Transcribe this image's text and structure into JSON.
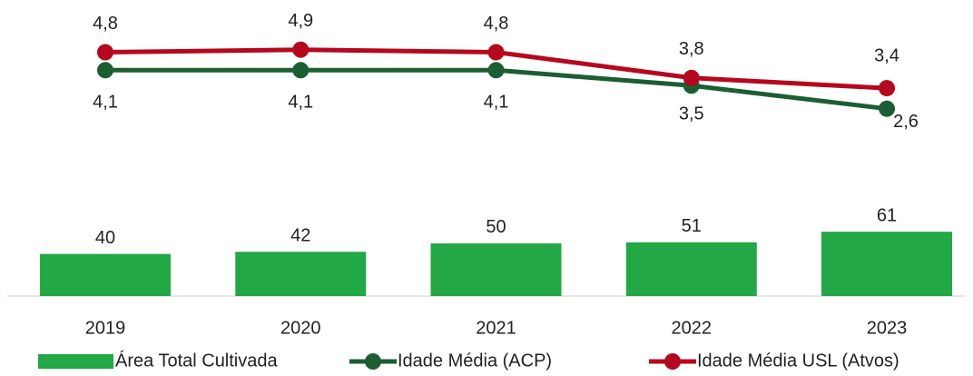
{
  "chart_data": {
    "type": "bar",
    "categories": [
      "2019",
      "2020",
      "2021",
      "2022",
      "2023"
    ],
    "ylim": [
      0,
      280
    ],
    "y2lim": [
      -4.7,
      6.8
    ],
    "series": [
      {
        "name": "Área Total Cultivada",
        "type": "bar",
        "color": "#22a845",
        "values": [
          40,
          42,
          50,
          51,
          61
        ]
      },
      {
        "name": "Idade Média (ACP)",
        "type": "line",
        "axis": "y2",
        "color": "#1b5e32",
        "values": [
          4.1,
          4.1,
          4.1,
          3.5,
          2.6
        ],
        "value_labels": [
          "4,1",
          "4,1",
          "4,1",
          "3,5",
          "2,6"
        ]
      },
      {
        "name": "Idade Média USL (Atvos)",
        "type": "line",
        "axis": "y2",
        "color": "#b5081e",
        "values": [
          4.8,
          4.9,
          4.8,
          3.8,
          3.4
        ],
        "value_labels": [
          "4,8",
          "4,9",
          "4,8",
          "3,8",
          "3,4"
        ]
      }
    ]
  }
}
